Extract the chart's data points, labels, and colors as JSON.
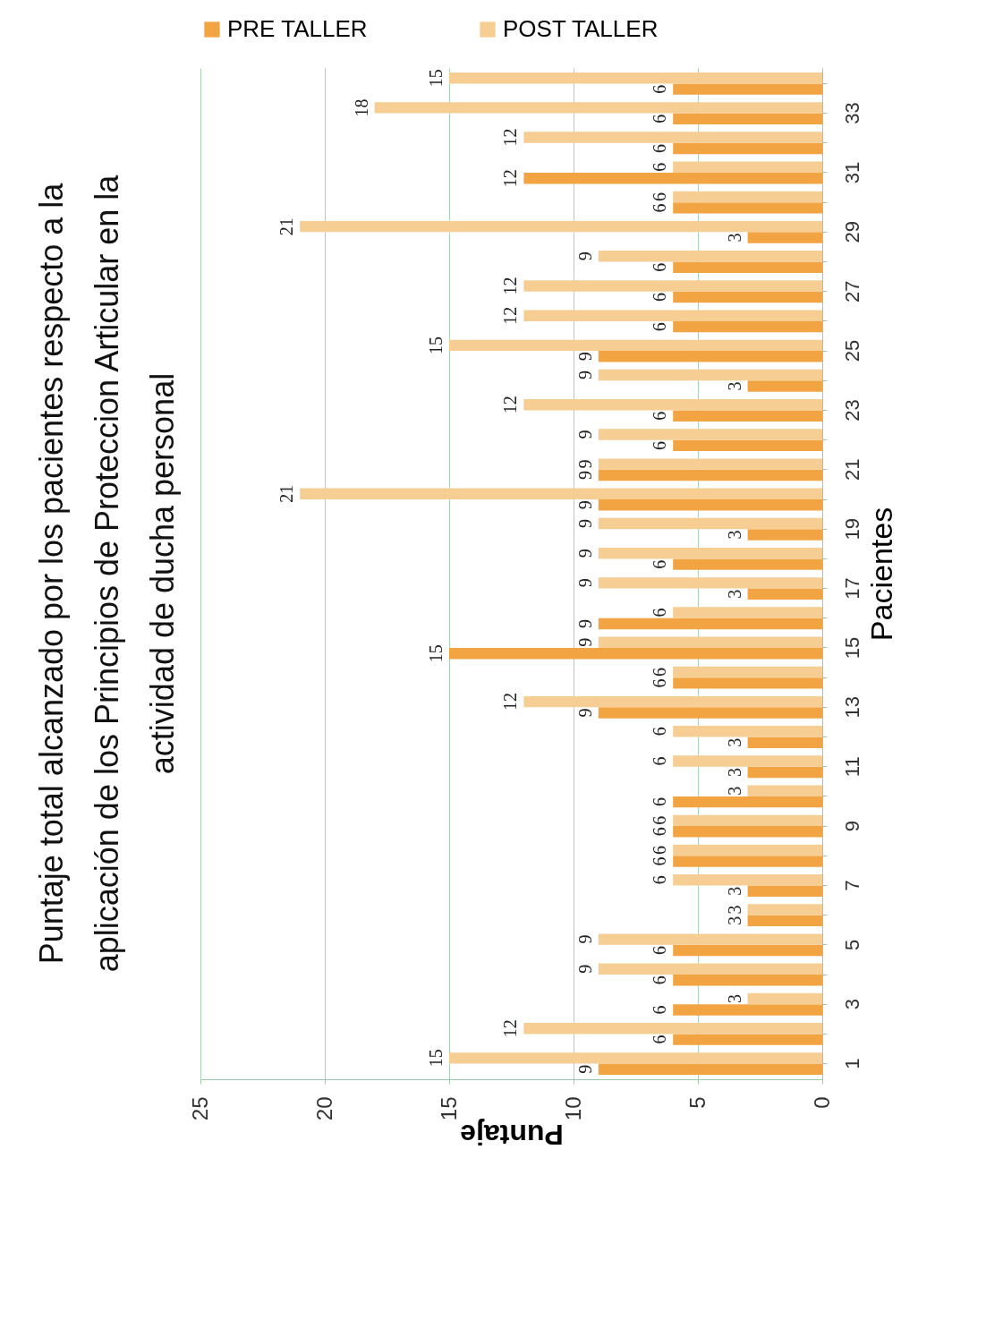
{
  "chart_data": {
    "type": "bar",
    "orientation": "horizontal",
    "title": "Puntaje total alcanzado por los pacientes respecto a la aplicación de los Principios de Proteccion Articular en la actividad de ducha personal",
    "xlabel": "Puntaje",
    "ylabel": "Pacientes",
    "categories": [
      null,
      "33",
      null,
      "31",
      null,
      "29",
      null,
      "27",
      null,
      "25",
      null,
      "23",
      null,
      "21",
      null,
      "19",
      null,
      "17",
      null,
      "15",
      null,
      "13",
      null,
      "11",
      null,
      "9",
      null,
      "7",
      null,
      "5",
      null,
      "3",
      null,
      "1"
    ],
    "series": [
      {
        "name": "PRE TALLER",
        "color": "#f2a443",
        "values": [
          6,
          6,
          6,
          12,
          6,
          3,
          6,
          6,
          6,
          9,
          3,
          6,
          6,
          9,
          9,
          3,
          6,
          3,
          9,
          15,
          6,
          9,
          3,
          3,
          6,
          6,
          6,
          3,
          3,
          6,
          6,
          6,
          6,
          9
        ]
      },
      {
        "name": "POST TALLER",
        "color": "#f6cd93",
        "values": [
          15,
          18,
          12,
          6,
          6,
          21,
          9,
          12,
          12,
          15,
          9,
          12,
          9,
          9,
          21,
          9,
          9,
          9,
          6,
          9,
          6,
          12,
          6,
          6,
          3,
          6,
          6,
          6,
          3,
          9,
          9,
          3,
          12,
          15
        ]
      }
    ],
    "xlim": [
      25,
      0
    ],
    "xticks": [
      0,
      5,
      10,
      15,
      20,
      25
    ],
    "grid": "x",
    "legend": "top",
    "data_labels": true
  }
}
